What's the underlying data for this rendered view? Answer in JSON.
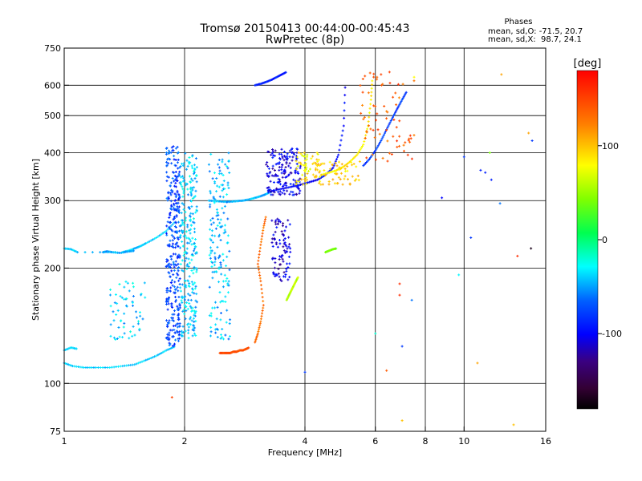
{
  "chart_data": {
    "type": "scatter",
    "title": "Tromsø 20150413 00:44:00-00:45:43",
    "subtitle": "RwPretec (8p)",
    "xlabel": "Frequency [MHz]",
    "ylabel": "Stationary phase Virtual Height [km]",
    "x_scale": "log",
    "y_scale": "log",
    "xlim": [
      1,
      16
    ],
    "ylim": [
      75,
      750
    ],
    "x_ticks": [
      1,
      2,
      4,
      6,
      8,
      10,
      16
    ],
    "x_tick_labels": [
      "1",
      "2",
      "4",
      "6",
      "8",
      "10",
      "16"
    ],
    "y_ticks": [
      75,
      100,
      200,
      300,
      400,
      500,
      600,
      750
    ],
    "y_tick_labels": [
      "75",
      "100",
      "200",
      "300",
      "400",
      "500",
      "600",
      "750"
    ],
    "grid": true,
    "phases_box": {
      "heading": "Phases",
      "line_o": "mean, sd,O: -71.5, 20.7",
      "line_x": "mean, sd,X:  98.7, 24.1"
    },
    "colorbar": {
      "label": "[deg]",
      "min": -180,
      "max": 180,
      "ticks": [
        100,
        0,
        -100
      ],
      "tick_labels": [
        "100",
        "0",
        "-100"
      ]
    },
    "traces": [
      {
        "x": [
          1.0,
          1.05,
          1.12,
          1.2,
          1.3,
          1.4,
          1.5,
          1.6,
          1.7,
          1.8,
          1.9
        ],
        "y": [
          113,
          111,
          110,
          110,
          110,
          111,
          112,
          115,
          118,
          122,
          125
        ],
        "phase": -40
      },
      {
        "x": [
          1.0,
          1.04,
          1.08
        ],
        "y": [
          122,
          124,
          123
        ],
        "phase": -40
      },
      {
        "x": [
          1.0,
          1.04,
          1.08,
          1.4,
          1.45,
          1.5,
          1.55,
          1.6,
          1.7,
          1.8,
          1.9
        ],
        "y": [
          225,
          224,
          220,
          220,
          222,
          225,
          228,
          232,
          240,
          250,
          265
        ],
        "phase": -40
      },
      {
        "x": [
          1.25,
          1.28,
          1.32,
          1.38,
          1.45,
          1.5
        ],
        "y": [
          220,
          221,
          220,
          219,
          221,
          222
        ],
        "phase": -50
      },
      {
        "x": [
          2.3,
          2.4,
          2.5,
          2.6,
          2.7,
          2.8,
          2.9,
          3.0,
          3.1,
          3.2,
          3.3
        ],
        "y": [
          300,
          299,
          298,
          298,
          299,
          300,
          302,
          305,
          308,
          312,
          317
        ],
        "phase": -45
      },
      {
        "x": [
          3.3,
          3.5,
          3.7,
          3.9,
          4.1,
          4.3,
          4.5,
          4.7,
          4.85,
          5.0,
          5.05
        ],
        "y": [
          318,
          322,
          326,
          330,
          335,
          340,
          350,
          365,
          395,
          470,
          620
        ],
        "phase": -100
      },
      {
        "x": [
          2.45,
          2.5,
          2.55,
          2.6,
          2.65,
          2.7,
          2.75,
          2.8,
          2.85,
          2.9
        ],
        "y": [
          120,
          120,
          120,
          120,
          121,
          121,
          122,
          122,
          123,
          124
        ],
        "phase": 145
      },
      {
        "x": [
          3.0,
          3.05,
          3.1,
          3.15,
          3.1,
          3.05,
          3.1,
          3.15,
          3.2
        ],
        "y": [
          128,
          135,
          145,
          160,
          185,
          205,
          230,
          255,
          275
        ],
        "phase": 130
      },
      {
        "x": [
          4.4,
          4.6,
          4.8,
          5.0,
          5.2,
          5.4,
          5.6,
          5.75,
          5.85,
          5.9
        ],
        "y": [
          350,
          355,
          360,
          368,
          380,
          395,
          420,
          470,
          550,
          630
        ],
        "phase": 85
      },
      {
        "x": [
          5.6,
          5.8,
          6.0,
          6.2,
          6.4,
          6.6,
          6.8,
          7.0,
          7.2
        ],
        "y": [
          370,
          385,
          405,
          430,
          460,
          490,
          520,
          550,
          580
        ],
        "phase": -80
      },
      {
        "x": [
          3.0,
          3.1,
          3.2,
          3.3,
          3.4,
          3.5,
          3.6
        ],
        "y": [
          600,
          605,
          612,
          620,
          630,
          640,
          650
        ],
        "phase": -90
      },
      {
        "x": [
          3.6,
          3.65,
          3.7,
          3.75,
          3.8,
          3.85
        ],
        "y": [
          165,
          170,
          175,
          180,
          185,
          190
        ],
        "phase": 60
      },
      {
        "x": [
          4.5,
          4.6,
          4.7,
          4.8
        ],
        "y": [
          220,
          222,
          224,
          225
        ],
        "phase": 40
      }
    ],
    "clouds": [
      {
        "x": [
          1.8,
          1.95
        ],
        "y": [
          125,
          420
        ],
        "n": 320,
        "phase": -75
      },
      {
        "x": [
          1.95,
          2.15
        ],
        "y": [
          130,
          400
        ],
        "n": 260,
        "phase": -40
      },
      {
        "x": [
          2.3,
          2.6
        ],
        "y": [
          130,
          400
        ],
        "n": 170,
        "phase": -45
      },
      {
        "x": [
          1.3,
          1.6
        ],
        "y": [
          130,
          185
        ],
        "n": 60,
        "phase": -40
      },
      {
        "x": [
          3.2,
          3.9
        ],
        "y": [
          310,
          410
        ],
        "n": 160,
        "phase": -105
      },
      {
        "x": [
          3.3,
          3.7
        ],
        "y": [
          185,
          270
        ],
        "n": 90,
        "phase": -110
      },
      {
        "x": [
          3.8,
          4.4
        ],
        "y": [
          330,
          400
        ],
        "n": 60,
        "phase": 85
      },
      {
        "x": [
          5.5,
          7.5
        ],
        "y": [
          380,
          650
        ],
        "n": 70,
        "phase": 140
      },
      {
        "x": [
          4.2,
          5.5
        ],
        "y": [
          330,
          380
        ],
        "n": 60,
        "phase": 95
      }
    ],
    "scatter_points": [
      {
        "x": 1.86,
        "y": 92,
        "phase": 150
      },
      {
        "x": 4.0,
        "y": 107,
        "phase": -80
      },
      {
        "x": 6.4,
        "y": 108,
        "phase": 140
      },
      {
        "x": 6.0,
        "y": 135,
        "phase": -20
      },
      {
        "x": 6.9,
        "y": 170,
        "phase": 160
      },
      {
        "x": 6.9,
        "y": 182,
        "phase": 160
      },
      {
        "x": 7.0,
        "y": 125,
        "phase": -80
      },
      {
        "x": 7.0,
        "y": 80,
        "phase": 100
      },
      {
        "x": 8.8,
        "y": 305,
        "phase": -100
      },
      {
        "x": 9.7,
        "y": 192,
        "phase": -30
      },
      {
        "x": 10.0,
        "y": 390,
        "phase": -80
      },
      {
        "x": 10.4,
        "y": 240,
        "phase": -80
      },
      {
        "x": 11.0,
        "y": 360,
        "phase": -90
      },
      {
        "x": 11.3,
        "y": 355,
        "phase": -90
      },
      {
        "x": 11.6,
        "y": 400,
        "phase": 40
      },
      {
        "x": 11.7,
        "y": 340,
        "phase": -90
      },
      {
        "x": 12.3,
        "y": 295,
        "phase": -60
      },
      {
        "x": 12.4,
        "y": 640,
        "phase": 110
      },
      {
        "x": 13.3,
        "y": 78,
        "phase": 100
      },
      {
        "x": 13.6,
        "y": 215,
        "phase": 160
      },
      {
        "x": 14.7,
        "y": 225,
        "phase": -170
      },
      {
        "x": 14.5,
        "y": 450,
        "phase": 110
      },
      {
        "x": 14.8,
        "y": 430,
        "phase": -80
      },
      {
        "x": 10.8,
        "y": 113,
        "phase": 110
      },
      {
        "x": 7.4,
        "y": 165,
        "phase": -60
      },
      {
        "x": 6.2,
        "y": 640,
        "phase": 150
      },
      {
        "x": 7.5,
        "y": 630,
        "phase": 80
      }
    ]
  }
}
